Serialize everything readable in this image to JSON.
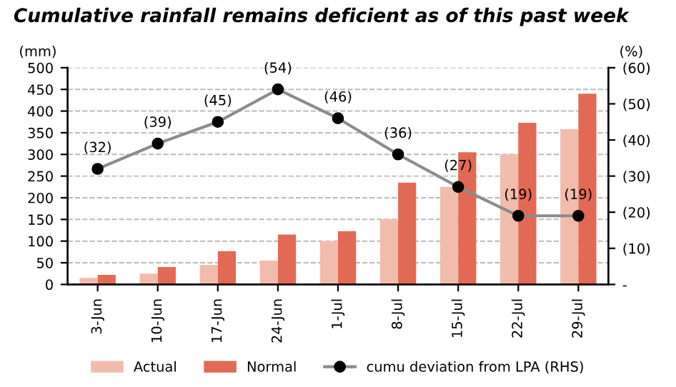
{
  "chart_data": {
    "type": "bar",
    "title": "Cumulative rainfall remains deficient as of this past week",
    "ylabel": "(mm)",
    "y2label": "(%)",
    "categories": [
      "3-Jun",
      "10-Jun",
      "17-Jun",
      "24-Jun",
      "1-Jul",
      "8-Jul",
      "15-Jul",
      "22-Jul",
      "29-Jul"
    ],
    "series": [
      {
        "name": "Actual",
        "color": "#f2bcad",
        "values": [
          15,
          25,
          45,
          55,
          100,
          150,
          225,
          300,
          358
        ]
      },
      {
        "name": "Normal",
        "color": "#e26a55",
        "values": [
          22,
          40,
          77,
          115,
          123,
          235,
          305,
          373,
          440
        ]
      },
      {
        "name": "cumu deviation from LPA (RHS)",
        "type": "line",
        "axis": "y2",
        "color": "#8c8c8c",
        "marker": "circle",
        "values": [
          32,
          39,
          45,
          54,
          46,
          36,
          27,
          19,
          19
        ],
        "value_labels": [
          "(32)",
          "(39)",
          "(45)",
          "(54)",
          "(46)",
          "(36)",
          "(27)",
          "(19)",
          "(19)"
        ]
      }
    ],
    "ylim": [
      0,
      500
    ],
    "yticks": [
      0,
      50,
      100,
      150,
      200,
      250,
      300,
      350,
      400,
      450,
      500
    ],
    "y2lim": [
      0,
      60
    ],
    "y2ticks": [
      {
        "value": 0,
        "label": "-"
      },
      {
        "value": 10,
        "label": "(10)"
      },
      {
        "value": 20,
        "label": "(20)"
      },
      {
        "value": 30,
        "label": "(30)"
      },
      {
        "value": 40,
        "label": "(40)"
      },
      {
        "value": 50,
        "label": "(50)"
      },
      {
        "value": 60,
        "label": "(60)"
      }
    ],
    "grid": "y",
    "legend": "bottom"
  }
}
